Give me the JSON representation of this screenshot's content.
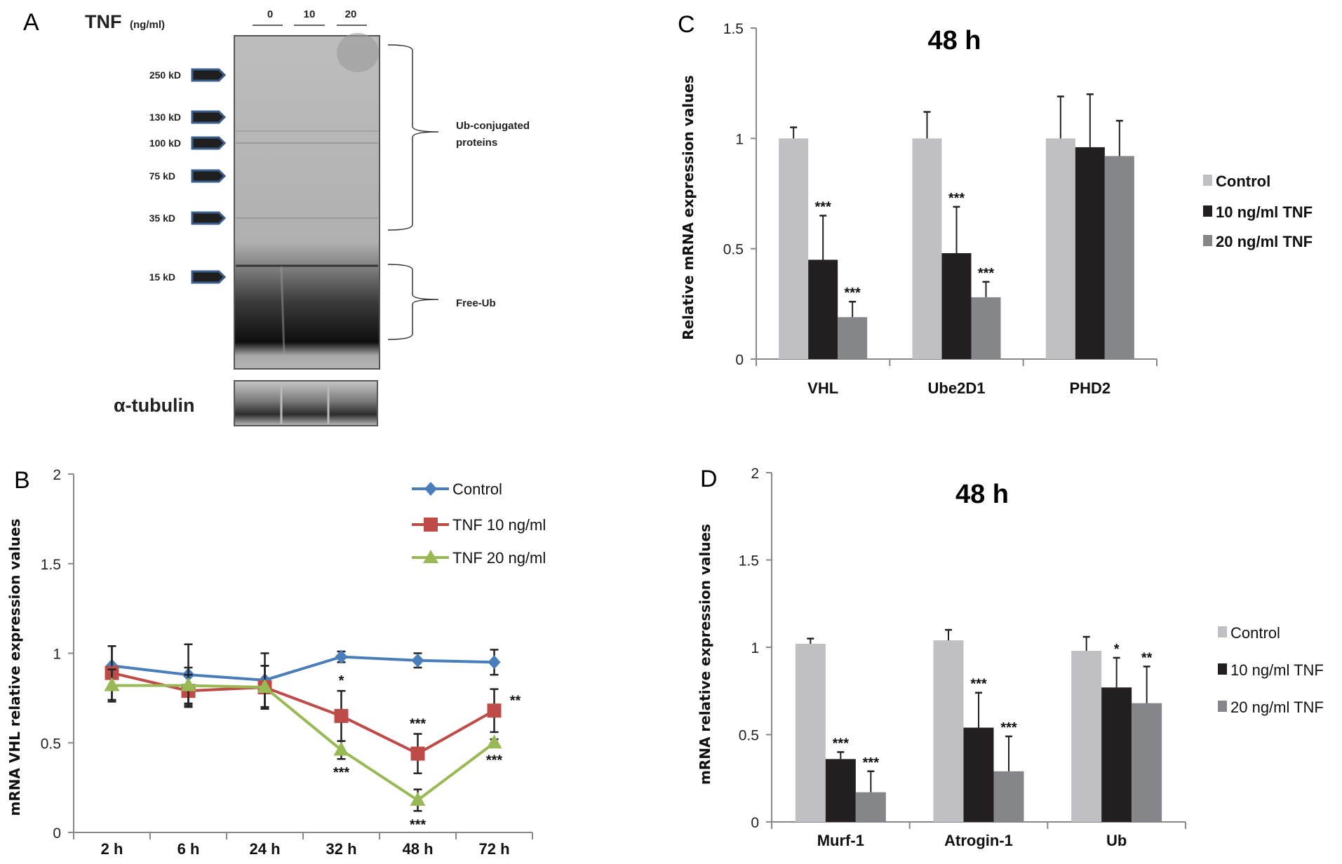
{
  "panel_labels": {
    "a": "A",
    "b": "B",
    "c": "C",
    "d": "D"
  },
  "blot": {
    "treatment_label": "TNF",
    "treatment_unit": "(ng/ml)",
    "lanes": [
      "0",
      "10",
      "20"
    ],
    "markers": [
      "250 kD",
      "130 kD",
      "100 kD",
      "75 kD",
      "35 kD",
      "15 kD"
    ],
    "marker_arrow_color": "#3a5f8f",
    "bracket_upper_line1": "Ub-conjugated",
    "bracket_upper_line2": "proteins",
    "bracket_lower": "Free-Ub",
    "loading_control": "α-tubulin"
  },
  "chart_data": [
    {
      "panel": "B",
      "type": "line",
      "title": "",
      "xlabel": "",
      "ylabel": "mRNA VHL relative expression values",
      "categories": [
        "2 h",
        "6 h",
        "24 h",
        "32 h",
        "48 h",
        "72 h"
      ],
      "ylim": [
        0,
        2
      ],
      "yticks": [
        "0",
        "0.5",
        "1",
        "1.5",
        "2"
      ],
      "grid": false,
      "legend": "top-right",
      "series": [
        {
          "name": "Control",
          "color": "#4a7ebb",
          "marker": "diamond",
          "values": [
            0.93,
            0.88,
            0.85,
            0.98,
            0.96,
            0.95
          ],
          "errors": [
            0.11,
            0.17,
            0.15,
            0.03,
            0.04,
            0.07
          ],
          "annotations": [
            "",
            "",
            "",
            "",
            "",
            ""
          ]
        },
        {
          "name": "TNF 10 ng/ml",
          "color": "#be4b48",
          "marker": "square",
          "values": [
            0.89,
            0.79,
            0.81,
            0.65,
            0.44,
            0.68
          ],
          "errors": [
            0.15,
            0.09,
            0.12,
            0.14,
            0.11,
            0.12
          ],
          "annotations": [
            "",
            "",
            "",
            "*",
            "***",
            "**"
          ],
          "annotation_side": [
            "",
            "",
            "",
            "above",
            "above",
            "right"
          ]
        },
        {
          "name": "TNF 20 ng/ml",
          "color": "#98b954",
          "marker": "triangle",
          "values": [
            0.82,
            0.82,
            0.81,
            0.46,
            0.18,
            0.5
          ],
          "errors": [
            0.09,
            0.1,
            0.12,
            0.05,
            0.06,
            0.02
          ],
          "annotations": [
            "",
            "",
            "",
            "***",
            "***",
            "***"
          ],
          "annotation_side": [
            "",
            "",
            "",
            "below",
            "below",
            "below"
          ]
        }
      ]
    },
    {
      "panel": "C",
      "type": "bar",
      "title": "48 h",
      "xlabel": "",
      "ylabel": "Relative mRNA expression values",
      "categories": [
        "VHL",
        "Ube2D1",
        "PHD2"
      ],
      "ylim": [
        0,
        1.5
      ],
      "yticks": [
        "0",
        "0.5",
        "1",
        "1.5"
      ],
      "grid": false,
      "legend": "right",
      "series": [
        {
          "name": "Control",
          "color": "#c0c0c4",
          "values": [
            1.0,
            1.0,
            1.0
          ],
          "errors": [
            0.05,
            0.12,
            0.19
          ],
          "annotations": [
            "",
            "",
            ""
          ]
        },
        {
          "name": "10 ng/ml TNF",
          "color": "#231f20",
          "values": [
            0.45,
            0.48,
            0.96
          ],
          "errors": [
            0.2,
            0.21,
            0.24
          ],
          "annotations": [
            "***",
            "***",
            ""
          ]
        },
        {
          "name": "20 ng/ml TNF",
          "color": "#85868a",
          "values": [
            0.19,
            0.28,
            0.92
          ],
          "errors": [
            0.07,
            0.07,
            0.16
          ],
          "annotations": [
            "***",
            "***",
            ""
          ]
        }
      ]
    },
    {
      "panel": "D",
      "type": "bar",
      "title": "48 h",
      "xlabel": "",
      "ylabel": "mRNA relative expression values",
      "categories": [
        "Murf-1",
        "Atrogin-1",
        "Ub"
      ],
      "ylim": [
        0,
        2
      ],
      "yticks": [
        "0",
        "0.5",
        "1",
        "1.5",
        "2"
      ],
      "grid": false,
      "legend": "right",
      "series": [
        {
          "name": "Control",
          "color": "#c0c0c4",
          "values": [
            1.02,
            1.04,
            0.98
          ],
          "errors": [
            0.03,
            0.06,
            0.08
          ],
          "annotations": [
            "",
            "",
            ""
          ]
        },
        {
          "name": "10 ng/ml TNF",
          "color": "#231f20",
          "values": [
            0.36,
            0.54,
            0.77
          ],
          "errors": [
            0.04,
            0.2,
            0.17
          ],
          "annotations": [
            "***",
            "***",
            "*"
          ]
        },
        {
          "name": "20 ng/ml TNF",
          "color": "#85868a",
          "values": [
            0.17,
            0.29,
            0.68
          ],
          "errors": [
            0.12,
            0.2,
            0.21
          ],
          "annotations": [
            "***",
            "***",
            "**"
          ]
        }
      ]
    }
  ]
}
